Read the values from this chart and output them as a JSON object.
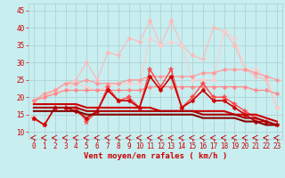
{
  "background_color": "#c8eef0",
  "grid_color": "#aacece",
  "xlabel": "Vent moyen/en rafales ( km/h )",
  "xlabel_color": "#cc0000",
  "tick_color": "#cc0000",
  "xlim": [
    -0.5,
    23.5
  ],
  "ylim": [
    8,
    47
  ],
  "yticks": [
    10,
    15,
    20,
    25,
    30,
    35,
    40,
    45
  ],
  "xticks": [
    0,
    1,
    2,
    3,
    4,
    5,
    6,
    7,
    8,
    9,
    10,
    11,
    12,
    13,
    14,
    15,
    16,
    17,
    18,
    19,
    20,
    21,
    22,
    23
  ],
  "lines": [
    {
      "color": "#ffb8b8",
      "linewidth": 0.8,
      "marker": "D",
      "markersize": 2.5,
      "data": [
        19,
        20,
        22,
        24,
        25,
        30,
        25,
        33,
        32,
        37,
        36,
        42,
        35,
        42,
        35,
        32,
        31,
        40,
        39,
        35,
        28,
        26,
        25,
        17
      ]
    },
    {
      "color": "#ffcccc",
      "linewidth": 0.8,
      "marker": "D",
      "markersize": 2.5,
      "data": [
        19,
        20,
        22,
        22,
        24,
        23,
        22,
        23,
        24,
        24,
        24,
        37,
        35,
        36,
        35,
        25,
        25,
        25,
        39,
        37,
        28,
        28,
        26,
        17
      ]
    },
    {
      "color": "#ff9999",
      "linewidth": 0.9,
      "marker": "D",
      "markersize": 2.5,
      "data": [
        19,
        21,
        22,
        24,
        24,
        25,
        24,
        24,
        24,
        25,
        25,
        26,
        26,
        26,
        26,
        26,
        27,
        27,
        28,
        28,
        28,
        27,
        26,
        25
      ]
    },
    {
      "color": "#ff8888",
      "linewidth": 0.9,
      "marker": "D",
      "markersize": 2.5,
      "data": [
        19,
        20,
        21,
        22,
        22,
        22,
        22,
        22,
        22,
        22,
        22,
        23,
        23,
        23,
        23,
        23,
        23,
        23,
        23,
        23,
        23,
        22,
        22,
        21
      ]
    },
    {
      "color": "#ff4444",
      "linewidth": 1.0,
      "marker": "*",
      "markersize": 5,
      "data": [
        14,
        12,
        17,
        17,
        17,
        13,
        16,
        23,
        19,
        20,
        17,
        28,
        23,
        28,
        17,
        20,
        24,
        20,
        20,
        18,
        16,
        14,
        13,
        12
      ]
    },
    {
      "color": "#cc0000",
      "linewidth": 1.2,
      "marker": "D",
      "markersize": 2.5,
      "data": [
        14,
        12,
        17,
        17,
        16,
        14,
        16,
        22,
        19,
        19,
        17,
        26,
        22,
        26,
        17,
        19,
        22,
        19,
        19,
        17,
        15,
        13,
        13,
        12
      ]
    },
    {
      "color": "#cc0000",
      "linewidth": 1.5,
      "marker": null,
      "markersize": 0,
      "data": [
        18,
        18,
        18,
        18,
        18,
        17,
        17,
        17,
        17,
        17,
        17,
        17,
        16,
        16,
        16,
        16,
        16,
        16,
        16,
        15,
        15,
        15,
        14,
        13
      ]
    },
    {
      "color": "#aa0000",
      "linewidth": 1.5,
      "marker": null,
      "markersize": 0,
      "data": [
        17,
        17,
        17,
        17,
        17,
        16,
        16,
        16,
        16,
        16,
        16,
        16,
        16,
        16,
        16,
        16,
        15,
        15,
        15,
        15,
        14,
        14,
        13,
        12
      ]
    },
    {
      "color": "#880000",
      "linewidth": 1.5,
      "marker": null,
      "markersize": 0,
      "data": [
        16,
        16,
        16,
        16,
        16,
        15,
        15,
        15,
        15,
        15,
        15,
        15,
        15,
        15,
        15,
        15,
        14,
        14,
        14,
        14,
        13,
        13,
        12,
        12
      ]
    }
  ]
}
